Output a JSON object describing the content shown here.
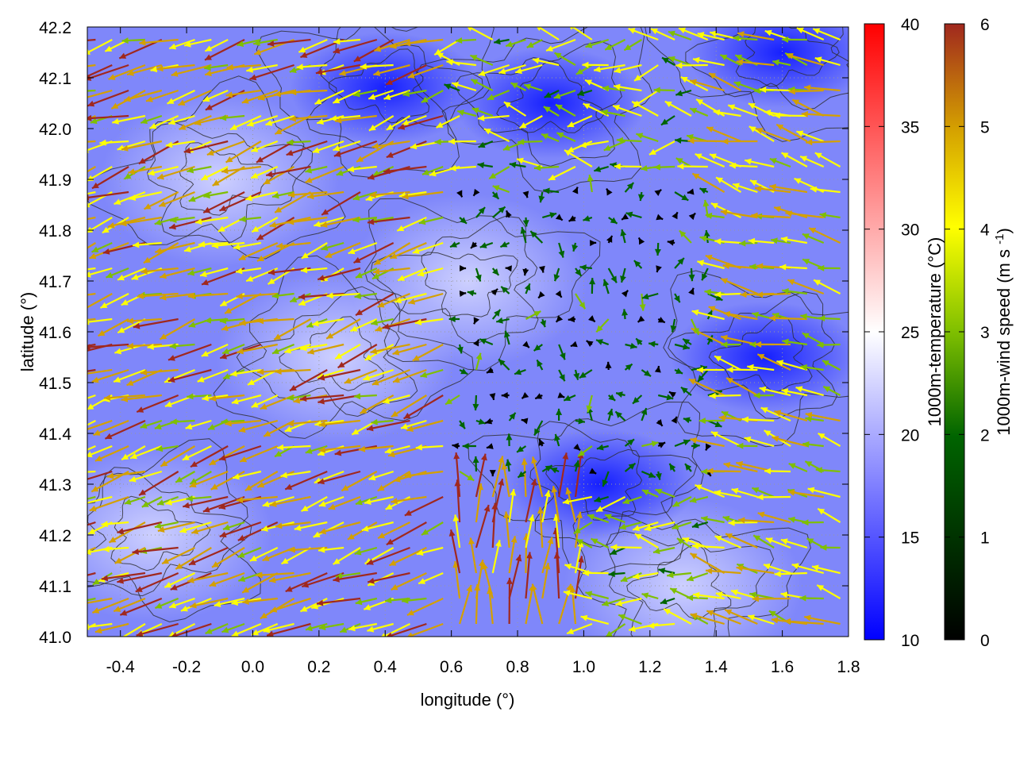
{
  "chart_data": {
    "type": "vector-field",
    "xlabel": "longitude (°)",
    "ylabel": "latitude (°)",
    "xlim": [
      -0.5,
      1.8
    ],
    "ylim": [
      41.0,
      42.2
    ],
    "x_ticks": [
      "-0.4",
      "-0.2",
      "0.0",
      "0.2",
      "0.4",
      "0.6",
      "0.8",
      "1.0",
      "1.2",
      "1.4",
      "1.6",
      "1.8"
    ],
    "y_ticks": [
      "41.0",
      "41.1",
      "41.2",
      "41.3",
      "41.4",
      "41.5",
      "41.6",
      "41.7",
      "41.8",
      "41.9",
      "42.0",
      "42.1",
      "42.2"
    ],
    "grid": true,
    "background_field": {
      "quantity": "1000m-temperature",
      "colorbar_label": "1000m-temperature (°C)",
      "range": [
        10,
        40
      ],
      "ticks": [
        "10",
        "15",
        "20",
        "25",
        "30",
        "35",
        "40"
      ],
      "colors": [
        "#0000ff",
        "#ffffff",
        "#ff0000"
      ],
      "cold_spots": [
        {
          "lon": 1.05,
          "lat": 41.3,
          "value": 12
        },
        {
          "lon": 0.9,
          "lat": 42.05,
          "value": 12
        },
        {
          "lon": 1.6,
          "lat": 42.15,
          "value": 11
        },
        {
          "lon": 1.55,
          "lat": 41.55,
          "value": 13
        },
        {
          "lon": 0.4,
          "lat": 42.08,
          "value": 14
        }
      ],
      "warm_spots": [
        {
          "lon": -0.3,
          "lat": 41.2,
          "value": 20
        },
        {
          "lon": 0.25,
          "lat": 41.55,
          "value": 20
        },
        {
          "lon": 0.65,
          "lat": 41.7,
          "value": 20
        },
        {
          "lon": -0.1,
          "lat": 41.9,
          "value": 19
        },
        {
          "lon": 1.3,
          "lat": 41.1,
          "value": 19
        }
      ]
    },
    "vector_field": {
      "quantity": "1000m-wind speed",
      "colorbar_label": "1000m-wind speed (m s-1)",
      "range": [
        0,
        6
      ],
      "ticks": [
        "0",
        "1",
        "2",
        "3",
        "4",
        "5",
        "6"
      ],
      "colors": [
        "#000000",
        "#006400",
        "#7fbf00",
        "#ffff00",
        "#d4a000",
        "#a0281e"
      ],
      "grid_spacing_deg": [
        0.05,
        0.05
      ],
      "regimes": [
        {
          "region": "west",
          "lon_range": [
            -0.5,
            0.6
          ],
          "direction": "toward west-northwest",
          "speed_range": [
            2.5,
            6
          ]
        },
        {
          "region": "south-central",
          "lon_range": [
            0.6,
            1.0
          ],
          "lat_range": [
            41.0,
            41.3
          ],
          "direction": "toward north",
          "speed_range": [
            4,
            6
          ]
        },
        {
          "region": "east-central",
          "lon_range": [
            1.0,
            1.4
          ],
          "lat_range": [
            41.3,
            41.9
          ],
          "direction": "variable / calm",
          "speed_range": [
            0,
            2
          ]
        },
        {
          "region": "east",
          "lon_range": [
            1.4,
            1.8
          ],
          "direction": "toward west-southwest",
          "speed_range": [
            2,
            5
          ]
        }
      ]
    },
    "contours": {
      "color": "#2b2b2b",
      "count": 6
    }
  }
}
